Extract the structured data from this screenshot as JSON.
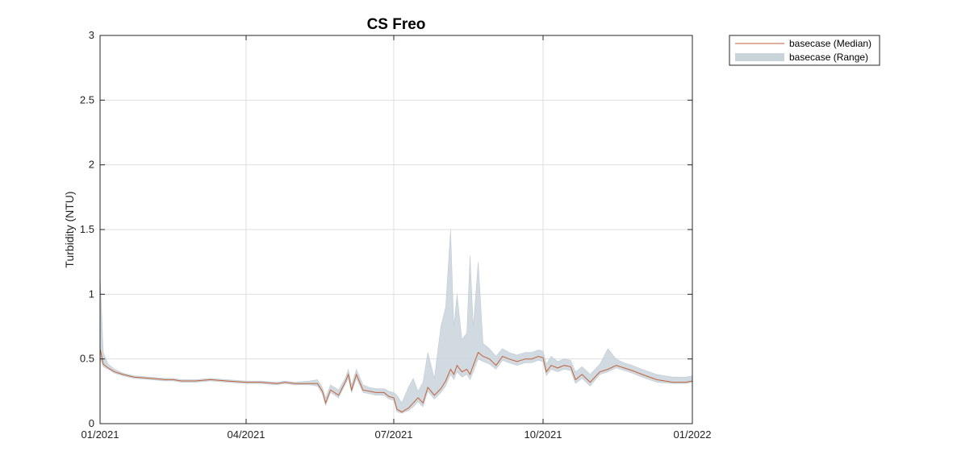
{
  "chart_data": {
    "type": "line",
    "title": "CS Freo",
    "xlabel": "",
    "ylabel": "Turbidity (NTU)",
    "x_range": [
      "2021-01-01",
      "2022-01-01"
    ],
    "ylim": [
      0,
      3
    ],
    "x_ticks": [
      "01/2021",
      "04/2021",
      "07/2021",
      "10/2021",
      "01/2022"
    ],
    "x_tick_dates": [
      "2021-01-01",
      "2021-04-01",
      "2021-07-01",
      "2021-10-01",
      "2022-01-01"
    ],
    "y_ticks": [
      "0",
      "0.5",
      "1",
      "1.5",
      "2",
      "2.5",
      "3"
    ],
    "y_tick_values": [
      0,
      0.5,
      1,
      1.5,
      2,
      2.5,
      3
    ],
    "grid": true,
    "legend_position": "outside-top-right",
    "colors": {
      "median": "#c0623a",
      "range": "#c9d3da",
      "range_edge": "#a9b8c4"
    },
    "series": [
      {
        "name": "basecase (Median)",
        "style": "line",
        "x": [
          "2021-01-01",
          "2021-01-03",
          "2021-01-06",
          "2021-01-10",
          "2021-01-15",
          "2021-01-22",
          "2021-02-01",
          "2021-02-10",
          "2021-02-15",
          "2021-02-20",
          "2021-03-01",
          "2021-03-10",
          "2021-03-20",
          "2021-04-01",
          "2021-04-10",
          "2021-04-20",
          "2021-04-25",
          "2021-05-01",
          "2021-05-10",
          "2021-05-15",
          "2021-05-18",
          "2021-05-20",
          "2021-05-23",
          "2021-05-28",
          "2021-06-01",
          "2021-06-03",
          "2021-06-05",
          "2021-06-08",
          "2021-06-12",
          "2021-06-16",
          "2021-06-20",
          "2021-06-25",
          "2021-06-28",
          "2021-07-01",
          "2021-07-03",
          "2021-07-06",
          "2021-07-10",
          "2021-07-13",
          "2021-07-16",
          "2021-07-19",
          "2021-07-22",
          "2021-07-26",
          "2021-07-30",
          "2021-08-02",
          "2021-08-05",
          "2021-08-07",
          "2021-08-09",
          "2021-08-12",
          "2021-08-15",
          "2021-08-17",
          "2021-08-19",
          "2021-08-22",
          "2021-08-25",
          "2021-08-29",
          "2021-09-02",
          "2021-09-06",
          "2021-09-10",
          "2021-09-15",
          "2021-09-20",
          "2021-09-24",
          "2021-09-28",
          "2021-10-01",
          "2021-10-03",
          "2021-10-06",
          "2021-10-10",
          "2021-10-14",
          "2021-10-18",
          "2021-10-21",
          "2021-10-25",
          "2021-10-30",
          "2021-11-05",
          "2021-11-10",
          "2021-11-15",
          "2021-11-20",
          "2021-11-25",
          "2021-12-01",
          "2021-12-10",
          "2021-12-20",
          "2021-12-28",
          "2022-01-01"
        ],
        "values": [
          0.58,
          0.46,
          0.43,
          0.4,
          0.38,
          0.36,
          0.35,
          0.34,
          0.34,
          0.33,
          0.33,
          0.34,
          0.33,
          0.32,
          0.32,
          0.31,
          0.32,
          0.31,
          0.31,
          0.31,
          0.25,
          0.16,
          0.26,
          0.22,
          0.32,
          0.38,
          0.26,
          0.38,
          0.26,
          0.25,
          0.24,
          0.24,
          0.21,
          0.2,
          0.11,
          0.09,
          0.12,
          0.16,
          0.2,
          0.16,
          0.28,
          0.22,
          0.27,
          0.33,
          0.42,
          0.38,
          0.45,
          0.4,
          0.42,
          0.38,
          0.45,
          0.55,
          0.52,
          0.5,
          0.45,
          0.52,
          0.5,
          0.48,
          0.5,
          0.5,
          0.52,
          0.51,
          0.4,
          0.45,
          0.43,
          0.45,
          0.44,
          0.34,
          0.38,
          0.32,
          0.4,
          0.42,
          0.45,
          0.43,
          0.41,
          0.38,
          0.34,
          0.32,
          0.32,
          0.33
        ]
      },
      {
        "name": "basecase (Range)",
        "style": "band",
        "x": [
          "2021-01-01",
          "2021-01-03",
          "2021-01-06",
          "2021-01-10",
          "2021-01-15",
          "2021-01-22",
          "2021-02-01",
          "2021-02-10",
          "2021-02-15",
          "2021-02-20",
          "2021-03-01",
          "2021-03-10",
          "2021-03-20",
          "2021-04-01",
          "2021-04-10",
          "2021-04-20",
          "2021-04-25",
          "2021-05-01",
          "2021-05-10",
          "2021-05-15",
          "2021-05-18",
          "2021-05-20",
          "2021-05-23",
          "2021-05-28",
          "2021-06-01",
          "2021-06-03",
          "2021-06-05",
          "2021-06-08",
          "2021-06-12",
          "2021-06-16",
          "2021-06-20",
          "2021-06-25",
          "2021-06-28",
          "2021-07-01",
          "2021-07-03",
          "2021-07-06",
          "2021-07-10",
          "2021-07-13",
          "2021-07-16",
          "2021-07-19",
          "2021-07-22",
          "2021-07-26",
          "2021-07-30",
          "2021-08-02",
          "2021-08-05",
          "2021-08-07",
          "2021-08-09",
          "2021-08-12",
          "2021-08-15",
          "2021-08-17",
          "2021-08-19",
          "2021-08-22",
          "2021-08-25",
          "2021-08-29",
          "2021-09-02",
          "2021-09-06",
          "2021-09-10",
          "2021-09-15",
          "2021-09-20",
          "2021-09-24",
          "2021-09-28",
          "2021-10-01",
          "2021-10-03",
          "2021-10-06",
          "2021-10-10",
          "2021-10-14",
          "2021-10-18",
          "2021-10-21",
          "2021-10-25",
          "2021-10-30",
          "2021-11-05",
          "2021-11-10",
          "2021-11-15",
          "2021-11-20",
          "2021-11-25",
          "2021-12-01",
          "2021-12-10",
          "2021-12-20",
          "2021-12-28",
          "2022-01-01"
        ],
        "lower": [
          0.5,
          0.44,
          0.42,
          0.39,
          0.37,
          0.35,
          0.34,
          0.33,
          0.33,
          0.32,
          0.32,
          0.33,
          0.32,
          0.31,
          0.31,
          0.3,
          0.31,
          0.3,
          0.3,
          0.29,
          0.23,
          0.14,
          0.24,
          0.2,
          0.3,
          0.35,
          0.24,
          0.35,
          0.24,
          0.23,
          0.22,
          0.22,
          0.19,
          0.18,
          0.09,
          0.08,
          0.1,
          0.13,
          0.17,
          0.13,
          0.25,
          0.19,
          0.24,
          0.29,
          0.38,
          0.34,
          0.4,
          0.36,
          0.38,
          0.34,
          0.4,
          0.5,
          0.48,
          0.46,
          0.42,
          0.49,
          0.47,
          0.45,
          0.47,
          0.47,
          0.49,
          0.48,
          0.37,
          0.42,
          0.4,
          0.42,
          0.41,
          0.31,
          0.35,
          0.29,
          0.38,
          0.4,
          0.43,
          0.41,
          0.39,
          0.36,
          0.32,
          0.31,
          0.31,
          0.32
        ],
        "upper": [
          1.15,
          0.55,
          0.46,
          0.42,
          0.39,
          0.37,
          0.36,
          0.35,
          0.35,
          0.34,
          0.34,
          0.35,
          0.34,
          0.33,
          0.33,
          0.32,
          0.33,
          0.32,
          0.33,
          0.34,
          0.28,
          0.2,
          0.3,
          0.26,
          0.35,
          0.42,
          0.3,
          0.42,
          0.3,
          0.28,
          0.27,
          0.27,
          0.25,
          0.24,
          0.22,
          0.16,
          0.28,
          0.35,
          0.25,
          0.32,
          0.55,
          0.35,
          0.75,
          0.9,
          1.5,
          0.75,
          1.0,
          0.65,
          0.7,
          1.3,
          0.75,
          1.25,
          0.62,
          0.58,
          0.52,
          0.58,
          0.55,
          0.53,
          0.55,
          0.55,
          0.57,
          0.56,
          0.46,
          0.52,
          0.48,
          0.5,
          0.49,
          0.4,
          0.44,
          0.38,
          0.46,
          0.58,
          0.5,
          0.47,
          0.45,
          0.42,
          0.38,
          0.36,
          0.36,
          0.37
        ]
      }
    ]
  }
}
